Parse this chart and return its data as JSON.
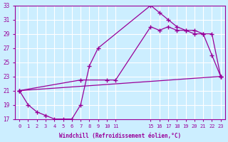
{
  "xlabel": "Windchill (Refroidissement éolien,°C)",
  "bg_color": "#cceeff",
  "grid_color": "#ffffff",
  "line_color": "#990099",
  "xlim": [
    -0.5,
    23.5
  ],
  "ylim": [
    17,
    33
  ],
  "xtick_positions": [
    0,
    1,
    2,
    3,
    4,
    5,
    6,
    7,
    8,
    9,
    10,
    11,
    15,
    16,
    17,
    18,
    19,
    20,
    21,
    22,
    23
  ],
  "xtick_labels": [
    "0",
    "1",
    "2",
    "3",
    "4",
    "5",
    "6",
    "7",
    "8",
    "9",
    "10",
    "11",
    "15",
    "16",
    "17",
    "18",
    "19",
    "20",
    "21",
    "22",
    "23"
  ],
  "ytick_positions": [
    17,
    19,
    21,
    23,
    25,
    27,
    29,
    31,
    33
  ],
  "line1_x": [
    0,
    1,
    2,
    3,
    4,
    5,
    6,
    7,
    8,
    9,
    15,
    16,
    17,
    18,
    19,
    20,
    21,
    22,
    23
  ],
  "line1_y": [
    21,
    19,
    18,
    17.5,
    17,
    17,
    17,
    19,
    24.5,
    27,
    33,
    32,
    31,
    30,
    29.5,
    29,
    29,
    26,
    23
  ],
  "line2_x": [
    0,
    7,
    10,
    11,
    15,
    16,
    17,
    18,
    19,
    20,
    21,
    22,
    23
  ],
  "line2_y": [
    21,
    22.5,
    22.5,
    22.5,
    30,
    29.5,
    30,
    29.5,
    29.5,
    29.5,
    29,
    29,
    23
  ],
  "line3_x": [
    0,
    23
  ],
  "line3_y": [
    21,
    23
  ]
}
